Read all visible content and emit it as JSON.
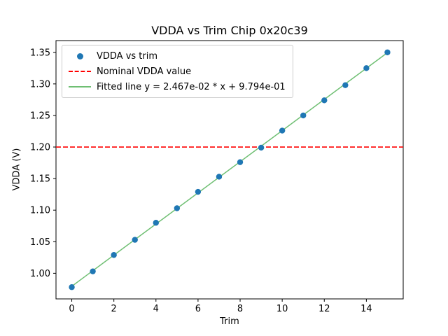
{
  "figure": {
    "background": "#ffffff"
  },
  "chart_data": {
    "type": "scatter",
    "title": "VDDA vs Trim Chip 0x20c39",
    "xlabel": "Trim",
    "ylabel": "VDDA (V)",
    "xlim": [
      -0.75,
      15.75
    ],
    "ylim": [
      0.9594,
      1.3686
    ],
    "xticks": [
      0,
      2,
      4,
      6,
      8,
      10,
      12,
      14
    ],
    "yticks": [
      1.0,
      1.05,
      1.1,
      1.15,
      1.2,
      1.25,
      1.3,
      1.35
    ],
    "grid": false,
    "legend_position": "upper left",
    "series": [
      {
        "name": "VDDA vs trim",
        "type": "scatter",
        "color": "#1f77b4",
        "x": [
          0,
          1,
          2,
          3,
          4,
          5,
          6,
          7,
          8,
          9,
          10,
          11,
          12,
          13,
          14,
          15
        ],
        "y": [
          0.978,
          1.003,
          1.029,
          1.053,
          1.08,
          1.103,
          1.129,
          1.153,
          1.176,
          1.199,
          1.226,
          1.25,
          1.274,
          1.298,
          1.325,
          1.35
        ]
      },
      {
        "name": "Nominal VDDA value",
        "type": "hline",
        "color": "#ff0000",
        "style": "dashed",
        "y": 1.2
      },
      {
        "name": "Fitted line y = 2.467e-02 * x + 9.794e-01",
        "type": "line",
        "color": "#6fbf73",
        "slope": 0.02467,
        "intercept": 0.9794,
        "x_start": 0,
        "x_end": 15
      }
    ]
  }
}
